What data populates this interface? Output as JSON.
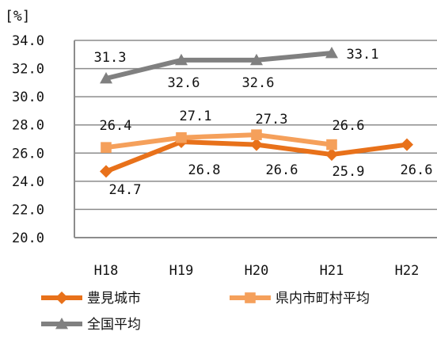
{
  "chart_data": {
    "type": "line",
    "title": "",
    "unit_label": "[%]",
    "xlabel": "",
    "ylabel": "",
    "categories": [
      "H18",
      "H19",
      "H20",
      "H21",
      "H22"
    ],
    "ylim": [
      20.0,
      34.0
    ],
    "ytick_step": 2.0,
    "ytick_labels": [
      "20.0",
      "22.0",
      "24.0",
      "26.0",
      "28.0",
      "30.0",
      "32.0",
      "34.0"
    ],
    "grid": true,
    "legend_position": "bottom-left",
    "series": [
      {
        "name": "豊見城市",
        "color": "#E8711A",
        "marker": "diamond",
        "values": [
          24.7,
          26.8,
          26.6,
          25.9,
          26.6
        ],
        "labels": [
          "24.7",
          "26.8",
          "26.6",
          "25.9",
          "26.6"
        ]
      },
      {
        "name": "県内市町村平均",
        "color": "#F5A05B",
        "marker": "square",
        "values": [
          26.4,
          27.1,
          27.3,
          26.6,
          null
        ],
        "labels": [
          "26.4",
          "27.1",
          "27.3",
          "26.6",
          ""
        ]
      },
      {
        "name": "全国平均",
        "color": "#808080",
        "marker": "triangle",
        "values": [
          31.3,
          32.6,
          32.6,
          33.1,
          null
        ],
        "labels": [
          "31.3",
          "32.6",
          "32.6",
          "33.1",
          ""
        ]
      }
    ]
  }
}
